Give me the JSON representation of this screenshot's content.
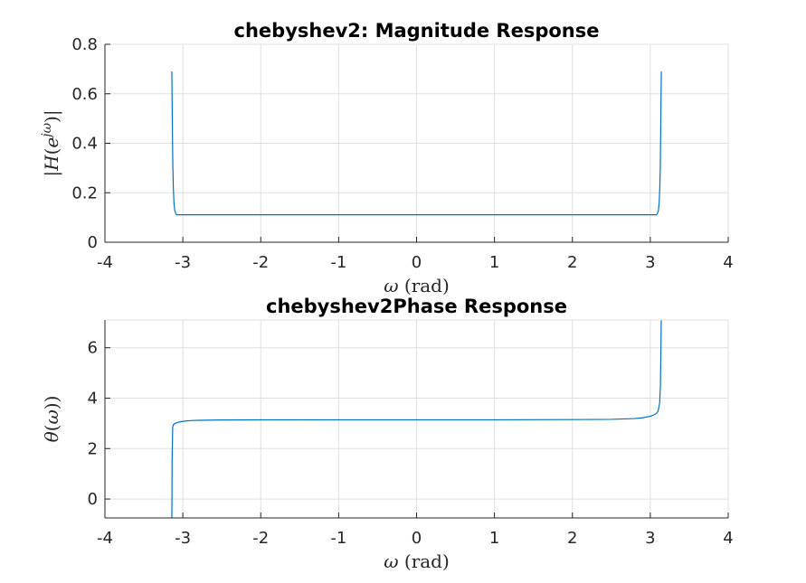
{
  "chart_data": [
    {
      "type": "line",
      "title": "chebyshev2: Magnitude Response",
      "xlabel": "ω (rad)",
      "ylabel": "|H(e^{jω})|",
      "xlim": [
        -4,
        4
      ],
      "ylim": [
        0,
        0.8
      ],
      "xticks": [
        -4,
        -3,
        -2,
        -1,
        0,
        1,
        2,
        3,
        4
      ],
      "xtick_labels": [
        "-4",
        "-3",
        "-2",
        "-1",
        "0",
        "1",
        "2",
        "3",
        "4"
      ],
      "yticks": [
        0,
        0.2,
        0.4,
        0.6,
        0.8
      ],
      "ytick_labels": [
        "0",
        "0.2",
        "0.4",
        "0.6",
        "0.8"
      ],
      "grid": true,
      "series": [
        {
          "color": "#0072bd",
          "x": [
            -3.1416,
            -3.1385,
            -3.1354,
            -3.132,
            -3.128,
            -3.122,
            -3.114,
            -3.105,
            -3.09,
            -3.08,
            -3.0,
            -2.0,
            -1.0,
            0.0,
            1.0,
            2.0,
            3.0,
            3.08,
            3.09,
            3.105,
            3.114,
            3.122,
            3.128,
            3.132,
            3.1354,
            3.1385,
            3.1416
          ],
          "y": [
            0.69,
            0.6,
            0.5,
            0.4,
            0.3,
            0.22,
            0.16,
            0.13,
            0.115,
            0.111,
            0.111,
            0.111,
            0.111,
            0.111,
            0.111,
            0.111,
            0.111,
            0.111,
            0.115,
            0.13,
            0.16,
            0.22,
            0.3,
            0.4,
            0.5,
            0.6,
            0.69
          ]
        }
      ]
    },
    {
      "type": "line",
      "title": "chebyshev2Phase Response",
      "xlabel": "ω (rad)",
      "ylabel": "θ(ω))",
      "xlim": [
        -4,
        4
      ],
      "ylim": [
        -0.75,
        7.1
      ],
      "xticks": [
        -4,
        -3,
        -2,
        -1,
        0,
        1,
        2,
        3,
        4
      ],
      "xtick_labels": [
        "-4",
        "-3",
        "-2",
        "-1",
        "0",
        "1",
        "2",
        "3",
        "4"
      ],
      "yticks": [
        0,
        2,
        4,
        6
      ],
      "ytick_labels": [
        "0",
        "2",
        "4",
        "6"
      ],
      "grid": true,
      "series": [
        {
          "color": "#0072bd",
          "x": [
            -3.1416,
            -3.14,
            -3.138,
            -3.13,
            -3.12,
            -3.1,
            -3.05,
            -3.0,
            -2.9,
            -2.8,
            -2.5,
            -2.0,
            -1.0,
            0.0,
            1.0,
            2.0,
            2.5,
            2.8,
            2.9,
            3.0,
            3.05,
            3.08,
            3.1,
            3.12,
            3.13,
            3.135,
            3.138,
            3.14,
            3.1416
          ],
          "y": [
            -0.75,
            -0.3,
            1.5,
            2.85,
            2.95,
            3.0,
            3.05,
            3.08,
            3.11,
            3.12,
            3.135,
            3.14,
            3.1416,
            3.1416,
            3.1416,
            3.15,
            3.16,
            3.19,
            3.22,
            3.28,
            3.34,
            3.4,
            3.48,
            3.8,
            4.5,
            5.5,
            6.3,
            7.0,
            7.1
          ]
        }
      ]
    }
  ]
}
